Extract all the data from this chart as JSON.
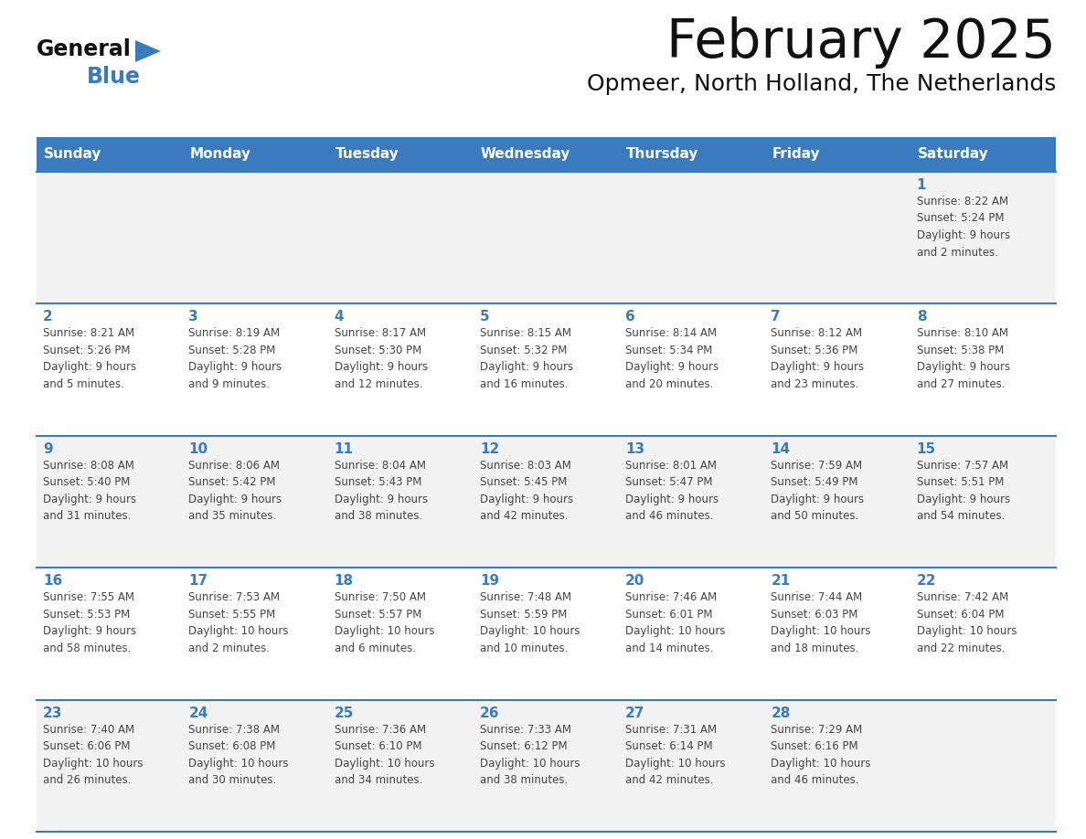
{
  "title": "February 2025",
  "subtitle": "Opmeer, North Holland, The Netherlands",
  "header_color": "#3a7bbf",
  "header_text_color": "#ffffff",
  "cell_bg_even": "#f2f2f2",
  "cell_bg_odd": "#ffffff",
  "day_number_color": "#3a7bbf",
  "body_text_color": "#444444",
  "line_color": "#3a7bbf",
  "days_of_week": [
    "Sunday",
    "Monday",
    "Tuesday",
    "Wednesday",
    "Thursday",
    "Friday",
    "Saturday"
  ],
  "weeks": [
    [
      {
        "day": "",
        "info": ""
      },
      {
        "day": "",
        "info": ""
      },
      {
        "day": "",
        "info": ""
      },
      {
        "day": "",
        "info": ""
      },
      {
        "day": "",
        "info": ""
      },
      {
        "day": "",
        "info": ""
      },
      {
        "day": "1",
        "info": "Sunrise: 8:22 AM\nSunset: 5:24 PM\nDaylight: 9 hours\nand 2 minutes."
      }
    ],
    [
      {
        "day": "2",
        "info": "Sunrise: 8:21 AM\nSunset: 5:26 PM\nDaylight: 9 hours\nand 5 minutes."
      },
      {
        "day": "3",
        "info": "Sunrise: 8:19 AM\nSunset: 5:28 PM\nDaylight: 9 hours\nand 9 minutes."
      },
      {
        "day": "4",
        "info": "Sunrise: 8:17 AM\nSunset: 5:30 PM\nDaylight: 9 hours\nand 12 minutes."
      },
      {
        "day": "5",
        "info": "Sunrise: 8:15 AM\nSunset: 5:32 PM\nDaylight: 9 hours\nand 16 minutes."
      },
      {
        "day": "6",
        "info": "Sunrise: 8:14 AM\nSunset: 5:34 PM\nDaylight: 9 hours\nand 20 minutes."
      },
      {
        "day": "7",
        "info": "Sunrise: 8:12 AM\nSunset: 5:36 PM\nDaylight: 9 hours\nand 23 minutes."
      },
      {
        "day": "8",
        "info": "Sunrise: 8:10 AM\nSunset: 5:38 PM\nDaylight: 9 hours\nand 27 minutes."
      }
    ],
    [
      {
        "day": "9",
        "info": "Sunrise: 8:08 AM\nSunset: 5:40 PM\nDaylight: 9 hours\nand 31 minutes."
      },
      {
        "day": "10",
        "info": "Sunrise: 8:06 AM\nSunset: 5:42 PM\nDaylight: 9 hours\nand 35 minutes."
      },
      {
        "day": "11",
        "info": "Sunrise: 8:04 AM\nSunset: 5:43 PM\nDaylight: 9 hours\nand 38 minutes."
      },
      {
        "day": "12",
        "info": "Sunrise: 8:03 AM\nSunset: 5:45 PM\nDaylight: 9 hours\nand 42 minutes."
      },
      {
        "day": "13",
        "info": "Sunrise: 8:01 AM\nSunset: 5:47 PM\nDaylight: 9 hours\nand 46 minutes."
      },
      {
        "day": "14",
        "info": "Sunrise: 7:59 AM\nSunset: 5:49 PM\nDaylight: 9 hours\nand 50 minutes."
      },
      {
        "day": "15",
        "info": "Sunrise: 7:57 AM\nSunset: 5:51 PM\nDaylight: 9 hours\nand 54 minutes."
      }
    ],
    [
      {
        "day": "16",
        "info": "Sunrise: 7:55 AM\nSunset: 5:53 PM\nDaylight: 9 hours\nand 58 minutes."
      },
      {
        "day": "17",
        "info": "Sunrise: 7:53 AM\nSunset: 5:55 PM\nDaylight: 10 hours\nand 2 minutes."
      },
      {
        "day": "18",
        "info": "Sunrise: 7:50 AM\nSunset: 5:57 PM\nDaylight: 10 hours\nand 6 minutes."
      },
      {
        "day": "19",
        "info": "Sunrise: 7:48 AM\nSunset: 5:59 PM\nDaylight: 10 hours\nand 10 minutes."
      },
      {
        "day": "20",
        "info": "Sunrise: 7:46 AM\nSunset: 6:01 PM\nDaylight: 10 hours\nand 14 minutes."
      },
      {
        "day": "21",
        "info": "Sunrise: 7:44 AM\nSunset: 6:03 PM\nDaylight: 10 hours\nand 18 minutes."
      },
      {
        "day": "22",
        "info": "Sunrise: 7:42 AM\nSunset: 6:04 PM\nDaylight: 10 hours\nand 22 minutes."
      }
    ],
    [
      {
        "day": "23",
        "info": "Sunrise: 7:40 AM\nSunset: 6:06 PM\nDaylight: 10 hours\nand 26 minutes."
      },
      {
        "day": "24",
        "info": "Sunrise: 7:38 AM\nSunset: 6:08 PM\nDaylight: 10 hours\nand 30 minutes."
      },
      {
        "day": "25",
        "info": "Sunrise: 7:36 AM\nSunset: 6:10 PM\nDaylight: 10 hours\nand 34 minutes."
      },
      {
        "day": "26",
        "info": "Sunrise: 7:33 AM\nSunset: 6:12 PM\nDaylight: 10 hours\nand 38 minutes."
      },
      {
        "day": "27",
        "info": "Sunrise: 7:31 AM\nSunset: 6:14 PM\nDaylight: 10 hours\nand 42 minutes."
      },
      {
        "day": "28",
        "info": "Sunrise: 7:29 AM\nSunset: 6:16 PM\nDaylight: 10 hours\nand 46 minutes."
      },
      {
        "day": "",
        "info": ""
      }
    ]
  ],
  "logo_general_color": "#111111",
  "logo_blue_color": "#3a7bbf",
  "logo_triangle_color": "#3a7bbf"
}
